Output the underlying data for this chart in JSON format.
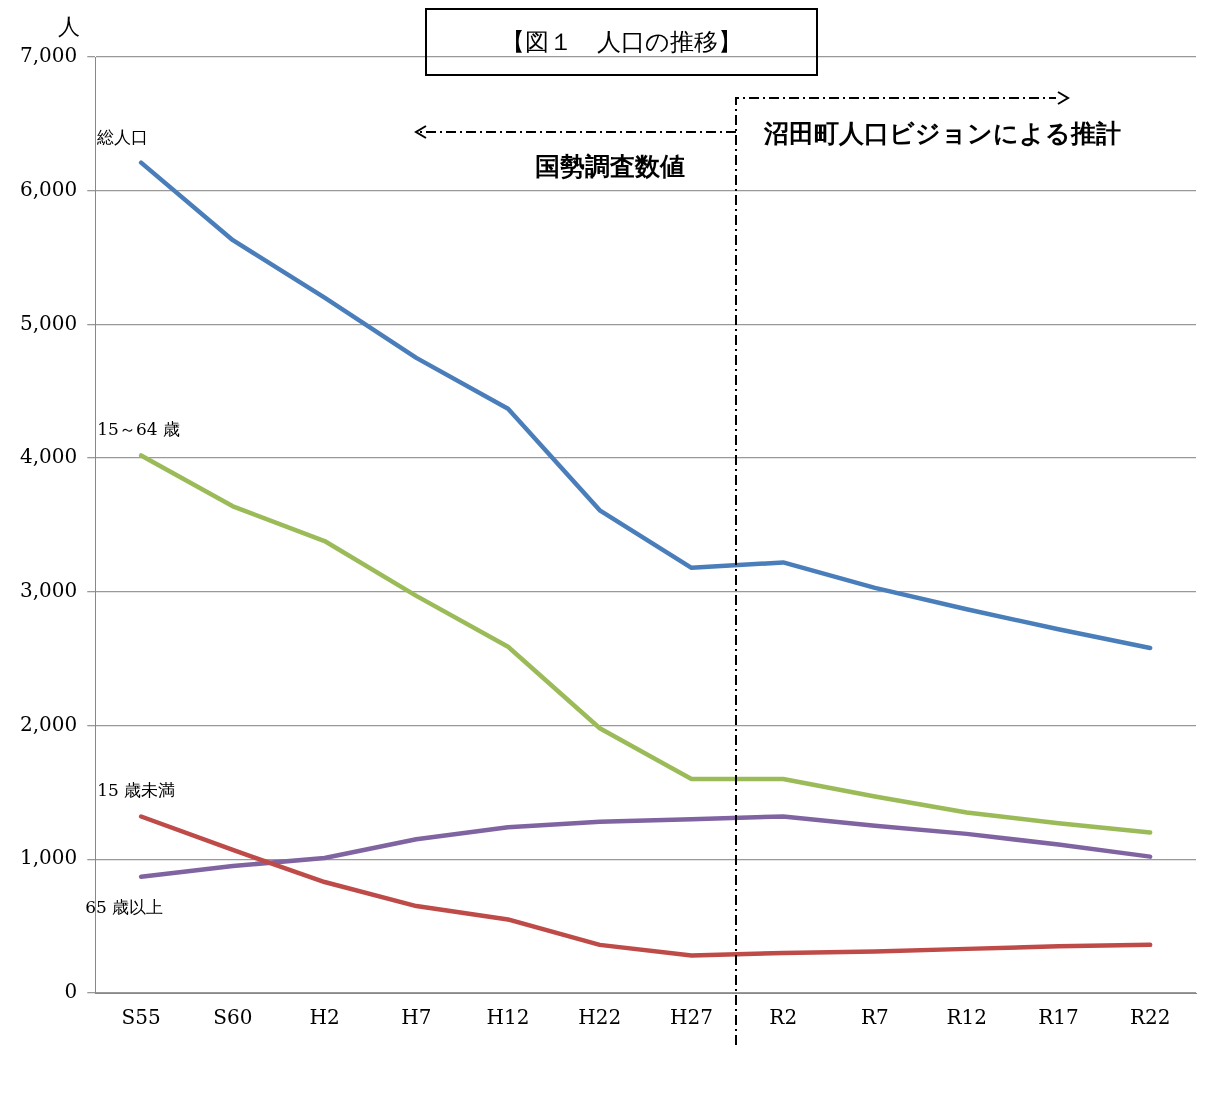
{
  "chart_data": {
    "type": "line",
    "title": "【図１　人口の推移】",
    "ylabel": "人",
    "categories": [
      "S55",
      "S60",
      "H2",
      "H7",
      "H12",
      "H22",
      "H27",
      "R2",
      "R7",
      "R12",
      "R17",
      "R22"
    ],
    "series": [
      {
        "name": "総人口",
        "color": "#4a7ebb",
        "values": [
          6210,
          5630,
          5200,
          4750,
          4370,
          3610,
          3180,
          3220,
          3030,
          2870,
          2720,
          2580
        ]
      },
      {
        "name": "15～64 歳",
        "color": "#9bbb59",
        "values": [
          4020,
          3640,
          3380,
          2970,
          2590,
          1980,
          1600,
          1600,
          1470,
          1350,
          1270,
          1200
        ]
      },
      {
        "name": "15 歳未満",
        "color": "#be4b48",
        "values": [
          1320,
          1070,
          830,
          650,
          550,
          360,
          280,
          300,
          310,
          330,
          350,
          360
        ]
      },
      {
        "name": "65 歳以上",
        "color": "#8064a2",
        "values": [
          870,
          950,
          1010,
          1150,
          1240,
          1280,
          1300,
          1320,
          1250,
          1190,
          1110,
          1020
        ]
      }
    ],
    "ylim": [
      0,
      7000
    ],
    "yticks": [
      {
        "value": 0,
        "label": "0"
      },
      {
        "value": 1000,
        "label": "1,000"
      },
      {
        "value": 2000,
        "label": "2,000"
      },
      {
        "value": 3000,
        "label": "3,000"
      },
      {
        "value": 4000,
        "label": "4,000"
      },
      {
        "value": 5000,
        "label": "5,000"
      },
      {
        "value": 6000,
        "label": "6,000"
      },
      {
        "value": 7000,
        "label": "7,000"
      }
    ],
    "grid": "y",
    "legend": false,
    "marker": "none",
    "line_style": "solid",
    "annotations": [
      "国勢調査数値",
      "沼田町人口ビジョンによる推計"
    ]
  }
}
